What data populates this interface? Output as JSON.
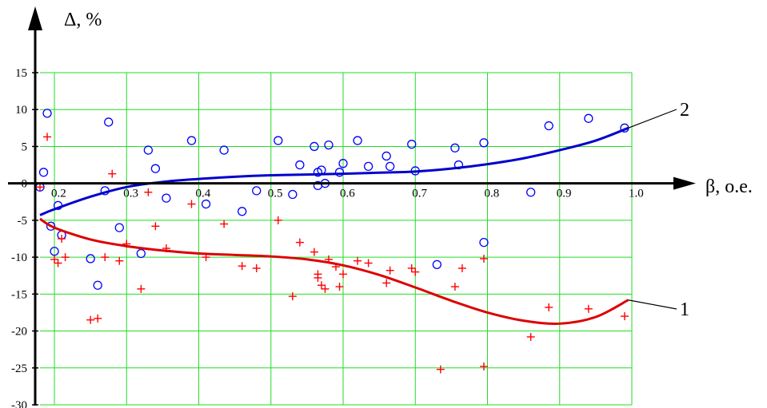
{
  "chart_data": {
    "type": "scatter",
    "title": "",
    "xlabel": "β, o.e.",
    "ylabel": "Δ, %",
    "xlim": [
      0.18,
      1.0
    ],
    "ylim": [
      -30,
      15
    ],
    "xticks": [
      "0.2",
      "0.3",
      "0.4",
      "0.5",
      "0.6",
      "0.7",
      "0.8",
      "0.9",
      "1.0"
    ],
    "yticks": [
      "15",
      "10",
      "5",
      "0",
      "-5",
      "-10",
      "-15",
      "-20",
      "-25",
      "-30"
    ],
    "grid": true,
    "grid_color": "#22dd22",
    "series": [
      {
        "marker": "circle",
        "color": "#0000ff",
        "points": [
          [
            0.18,
            -0.5
          ],
          [
            0.185,
            1.5
          ],
          [
            0.19,
            9.5
          ],
          [
            0.195,
            -5.8
          ],
          [
            0.2,
            -9.2
          ],
          [
            0.205,
            -3.0
          ],
          [
            0.21,
            -7.0
          ],
          [
            0.25,
            -10.2
          ],
          [
            0.26,
            -13.8
          ],
          [
            0.27,
            -1.0
          ],
          [
            0.275,
            8.3
          ],
          [
            0.29,
            -6.0
          ],
          [
            0.32,
            -9.5
          ],
          [
            0.33,
            4.5
          ],
          [
            0.34,
            2.0
          ],
          [
            0.355,
            -2.0
          ],
          [
            0.39,
            5.8
          ],
          [
            0.41,
            -2.8
          ],
          [
            0.435,
            4.5
          ],
          [
            0.46,
            -3.8
          ],
          [
            0.48,
            -1.0
          ],
          [
            0.51,
            5.8
          ],
          [
            0.53,
            -1.5
          ],
          [
            0.54,
            2.5
          ],
          [
            0.56,
            5.0
          ],
          [
            0.565,
            1.5
          ],
          [
            0.565,
            -0.3
          ],
          [
            0.57,
            1.8
          ],
          [
            0.575,
            0.0
          ],
          [
            0.58,
            5.2
          ],
          [
            0.595,
            1.5
          ],
          [
            0.6,
            2.7
          ],
          [
            0.62,
            5.8
          ],
          [
            0.635,
            2.3
          ],
          [
            0.66,
            3.7
          ],
          [
            0.665,
            2.3
          ],
          [
            0.695,
            5.3
          ],
          [
            0.7,
            1.7
          ],
          [
            0.73,
            -11.0
          ],
          [
            0.755,
            4.8
          ],
          [
            0.76,
            2.5
          ],
          [
            0.795,
            5.5
          ],
          [
            0.795,
            -8.0
          ],
          [
            0.86,
            -1.2
          ],
          [
            0.885,
            7.8
          ],
          [
            0.94,
            8.8
          ],
          [
            0.99,
            7.5
          ]
        ]
      },
      {
        "marker": "plus",
        "color": "#ff0000",
        "points": [
          [
            0.18,
            -0.5
          ],
          [
            0.19,
            6.3
          ],
          [
            0.2,
            -10.3
          ],
          [
            0.205,
            -10.8
          ],
          [
            0.21,
            -7.5
          ],
          [
            0.215,
            -10.0
          ],
          [
            0.25,
            -18.5
          ],
          [
            0.26,
            -18.3
          ],
          [
            0.27,
            -10.0
          ],
          [
            0.28,
            1.3
          ],
          [
            0.29,
            -10.5
          ],
          [
            0.3,
            -8.2
          ],
          [
            0.32,
            -14.3
          ],
          [
            0.33,
            -1.2
          ],
          [
            0.34,
            -5.8
          ],
          [
            0.355,
            -8.8
          ],
          [
            0.39,
            -2.8
          ],
          [
            0.41,
            -10.0
          ],
          [
            0.435,
            -5.5
          ],
          [
            0.46,
            -11.2
          ],
          [
            0.48,
            -11.5
          ],
          [
            0.51,
            -5.0
          ],
          [
            0.53,
            -15.3
          ],
          [
            0.54,
            -8.0
          ],
          [
            0.56,
            -9.3
          ],
          [
            0.565,
            -12.3
          ],
          [
            0.565,
            -12.8
          ],
          [
            0.57,
            -13.8
          ],
          [
            0.575,
            -14.3
          ],
          [
            0.58,
            -10.3
          ],
          [
            0.59,
            -11.3
          ],
          [
            0.595,
            -14.0
          ],
          [
            0.6,
            -12.3
          ],
          [
            0.62,
            -10.5
          ],
          [
            0.635,
            -10.8
          ],
          [
            0.66,
            -13.5
          ],
          [
            0.665,
            -11.8
          ],
          [
            0.695,
            -11.5
          ],
          [
            0.7,
            -12.0
          ],
          [
            0.735,
            -25.2
          ],
          [
            0.755,
            -14.0
          ],
          [
            0.765,
            -11.5
          ],
          [
            0.795,
            -24.8
          ],
          [
            0.795,
            -10.2
          ],
          [
            0.86,
            -20.8
          ],
          [
            0.885,
            -16.8
          ],
          [
            0.94,
            -17.0
          ],
          [
            0.99,
            -18.0
          ]
        ]
      },
      {
        "type": "line",
        "color": "#0000cc",
        "label": "2",
        "points": [
          [
            0.18,
            -4.3
          ],
          [
            0.2,
            -3.5
          ],
          [
            0.25,
            -1.8
          ],
          [
            0.3,
            -0.5
          ],
          [
            0.35,
            0.2
          ],
          [
            0.4,
            0.6
          ],
          [
            0.45,
            0.9
          ],
          [
            0.5,
            1.1
          ],
          [
            0.55,
            1.2
          ],
          [
            0.6,
            1.3
          ],
          [
            0.65,
            1.45
          ],
          [
            0.7,
            1.6
          ],
          [
            0.75,
            2.0
          ],
          [
            0.8,
            2.6
          ],
          [
            0.85,
            3.4
          ],
          [
            0.9,
            4.5
          ],
          [
            0.95,
            5.8
          ],
          [
            0.995,
            7.5
          ]
        ]
      },
      {
        "type": "line",
        "color": "#dd0000",
        "label": "1",
        "points": [
          [
            0.18,
            -4.8
          ],
          [
            0.2,
            -6.0
          ],
          [
            0.25,
            -7.6
          ],
          [
            0.3,
            -8.5
          ],
          [
            0.35,
            -9.1
          ],
          [
            0.4,
            -9.5
          ],
          [
            0.45,
            -9.7
          ],
          [
            0.5,
            -9.9
          ],
          [
            0.55,
            -10.3
          ],
          [
            0.6,
            -11.1
          ],
          [
            0.65,
            -12.4
          ],
          [
            0.7,
            -14.1
          ],
          [
            0.75,
            -15.9
          ],
          [
            0.8,
            -17.5
          ],
          [
            0.85,
            -18.6
          ],
          [
            0.9,
            -19.0
          ],
          [
            0.95,
            -18.1
          ],
          [
            0.995,
            -15.8
          ]
        ]
      }
    ]
  }
}
